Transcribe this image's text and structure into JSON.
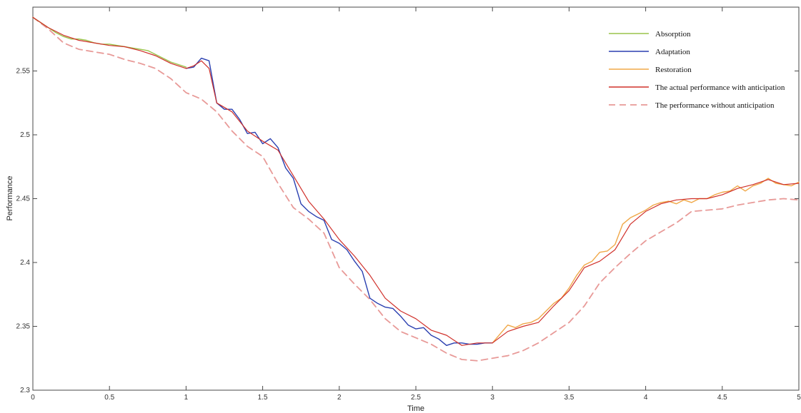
{
  "chart_data": {
    "type": "line",
    "title": "",
    "xlabel": "Time",
    "ylabel": "Performance",
    "xlim": [
      0,
      5
    ],
    "ylim": [
      2.3,
      2.6
    ],
    "xticks": [
      0,
      0.5,
      1,
      1.5,
      2,
      2.5,
      3,
      3.5,
      4,
      4.5,
      5
    ],
    "xtick_labels": [
      "0",
      "0.5",
      "1",
      "1.5",
      "2",
      "2.5",
      "3",
      "3.5",
      "4",
      "4.5",
      "5"
    ],
    "yticks": [
      2.3,
      2.35,
      2.4,
      2.45,
      2.5,
      2.55
    ],
    "ytick_labels": [
      "2.3",
      "2.35",
      "2.4",
      "2.45",
      "2.5",
      "2.55"
    ],
    "grid": false,
    "legend_position": "top-right",
    "series": [
      {
        "name": "Absorption",
        "color": "#9ac44a",
        "dash": "solid",
        "x": [
          0,
          0.05,
          0.1,
          0.15,
          0.2,
          0.25,
          0.3,
          0.35,
          0.4,
          0.45,
          0.5,
          0.55,
          0.6,
          0.65,
          0.7,
          0.75,
          0.8,
          0.85,
          0.9,
          0.95,
          1.0
        ],
        "y": [
          2.592,
          2.588,
          2.584,
          2.58,
          2.577,
          2.575,
          2.575,
          2.574,
          2.572,
          2.571,
          2.571,
          2.57,
          2.569,
          2.568,
          2.567,
          2.566,
          2.563,
          2.56,
          2.557,
          2.555,
          2.553
        ]
      },
      {
        "name": "Adaptation",
        "color": "#2a3fb0",
        "dash": "solid",
        "x": [
          1.0,
          1.05,
          1.1,
          1.15,
          1.2,
          1.25,
          1.3,
          1.35,
          1.4,
          1.45,
          1.5,
          1.55,
          1.6,
          1.65,
          1.7,
          1.75,
          1.8,
          1.85,
          1.9,
          1.95,
          2.0,
          2.05,
          2.1,
          2.15,
          2.2,
          2.25,
          2.3,
          2.35,
          2.4,
          2.45,
          2.5,
          2.55,
          2.6,
          2.65,
          2.7,
          2.75,
          2.8,
          2.85,
          2.9,
          2.95,
          3.0
        ],
        "y": [
          2.552,
          2.553,
          2.56,
          2.558,
          2.525,
          2.52,
          2.52,
          2.512,
          2.501,
          2.502,
          2.493,
          2.497,
          2.49,
          2.474,
          2.466,
          2.446,
          2.44,
          2.436,
          2.433,
          2.418,
          2.415,
          2.41,
          2.401,
          2.393,
          2.372,
          2.368,
          2.365,
          2.364,
          2.358,
          2.351,
          2.348,
          2.349,
          2.343,
          2.34,
          2.335,
          2.337,
          2.337,
          2.336,
          2.336,
          2.337,
          2.337
        ]
      },
      {
        "name": "Restoration",
        "color": "#f0a848",
        "dash": "solid",
        "x": [
          3.0,
          3.05,
          3.1,
          3.15,
          3.2,
          3.25,
          3.3,
          3.35,
          3.4,
          3.45,
          3.5,
          3.55,
          3.6,
          3.65,
          3.7,
          3.75,
          3.8,
          3.85,
          3.9,
          3.95,
          4.0,
          4.05,
          4.1,
          4.15,
          4.2,
          4.25,
          4.3,
          4.35,
          4.4,
          4.45,
          4.5,
          4.55,
          4.6,
          4.65,
          4.7,
          4.75,
          4.8,
          4.85,
          4.9,
          4.95,
          5.0
        ],
        "y": [
          2.337,
          2.344,
          2.351,
          2.349,
          2.352,
          2.353,
          2.356,
          2.362,
          2.368,
          2.372,
          2.38,
          2.39,
          2.398,
          2.401,
          2.408,
          2.409,
          2.414,
          2.43,
          2.435,
          2.438,
          2.441,
          2.445,
          2.447,
          2.448,
          2.446,
          2.449,
          2.447,
          2.45,
          2.45,
          2.453,
          2.455,
          2.456,
          2.46,
          2.456,
          2.46,
          2.462,
          2.466,
          2.462,
          2.461,
          2.46,
          2.463
        ]
      },
      {
        "name": "The actual performance with anticipation",
        "color": "#d0302a",
        "dash": "solid",
        "x": [
          0,
          0.1,
          0.2,
          0.3,
          0.4,
          0.5,
          0.6,
          0.7,
          0.8,
          0.9,
          1.0,
          1.05,
          1.1,
          1.15,
          1.2,
          1.3,
          1.4,
          1.5,
          1.6,
          1.7,
          1.8,
          1.9,
          2.0,
          2.1,
          2.2,
          2.3,
          2.4,
          2.5,
          2.6,
          2.7,
          2.8,
          2.9,
          3.0,
          3.1,
          3.2,
          3.3,
          3.4,
          3.5,
          3.6,
          3.7,
          3.8,
          3.9,
          4.0,
          4.1,
          4.2,
          4.3,
          4.4,
          4.5,
          4.6,
          4.7,
          4.8,
          4.9,
          5.0
        ],
        "y": [
          2.592,
          2.584,
          2.578,
          2.574,
          2.572,
          2.57,
          2.569,
          2.566,
          2.562,
          2.556,
          2.552,
          2.554,
          2.558,
          2.552,
          2.525,
          2.518,
          2.503,
          2.495,
          2.488,
          2.468,
          2.448,
          2.434,
          2.418,
          2.405,
          2.39,
          2.372,
          2.362,
          2.356,
          2.347,
          2.343,
          2.335,
          2.337,
          2.337,
          2.346,
          2.35,
          2.353,
          2.366,
          2.378,
          2.396,
          2.401,
          2.41,
          2.43,
          2.44,
          2.446,
          2.449,
          2.45,
          2.45,
          2.453,
          2.458,
          2.461,
          2.465,
          2.461,
          2.462
        ]
      },
      {
        "name": "The performance without anticipation",
        "color": "#e89a98",
        "dash": "dashed",
        "x": [
          0,
          0.1,
          0.2,
          0.3,
          0.4,
          0.5,
          0.6,
          0.7,
          0.8,
          0.9,
          1.0,
          1.1,
          1.2,
          1.3,
          1.4,
          1.5,
          1.6,
          1.7,
          1.8,
          1.9,
          2.0,
          2.1,
          2.2,
          2.3,
          2.4,
          2.5,
          2.6,
          2.7,
          2.8,
          2.9,
          3.0,
          3.1,
          3.2,
          3.3,
          3.4,
          3.5,
          3.6,
          3.7,
          3.8,
          3.9,
          4.0,
          4.1,
          4.2,
          4.3,
          4.4,
          4.5,
          4.6,
          4.7,
          4.8,
          4.9,
          5.0
        ],
        "y": [
          2.592,
          2.583,
          2.572,
          2.567,
          2.565,
          2.563,
          2.559,
          2.556,
          2.552,
          2.544,
          2.533,
          2.528,
          2.518,
          2.503,
          2.491,
          2.483,
          2.462,
          2.443,
          2.434,
          2.423,
          2.396,
          2.383,
          2.371,
          2.356,
          2.346,
          2.341,
          2.336,
          2.329,
          2.324,
          2.323,
          2.325,
          2.327,
          2.331,
          2.337,
          2.345,
          2.353,
          2.366,
          2.384,
          2.396,
          2.407,
          2.417,
          2.424,
          2.431,
          2.44,
          2.441,
          2.442,
          2.445,
          2.447,
          2.449,
          2.45,
          2.449
        ]
      }
    ]
  }
}
